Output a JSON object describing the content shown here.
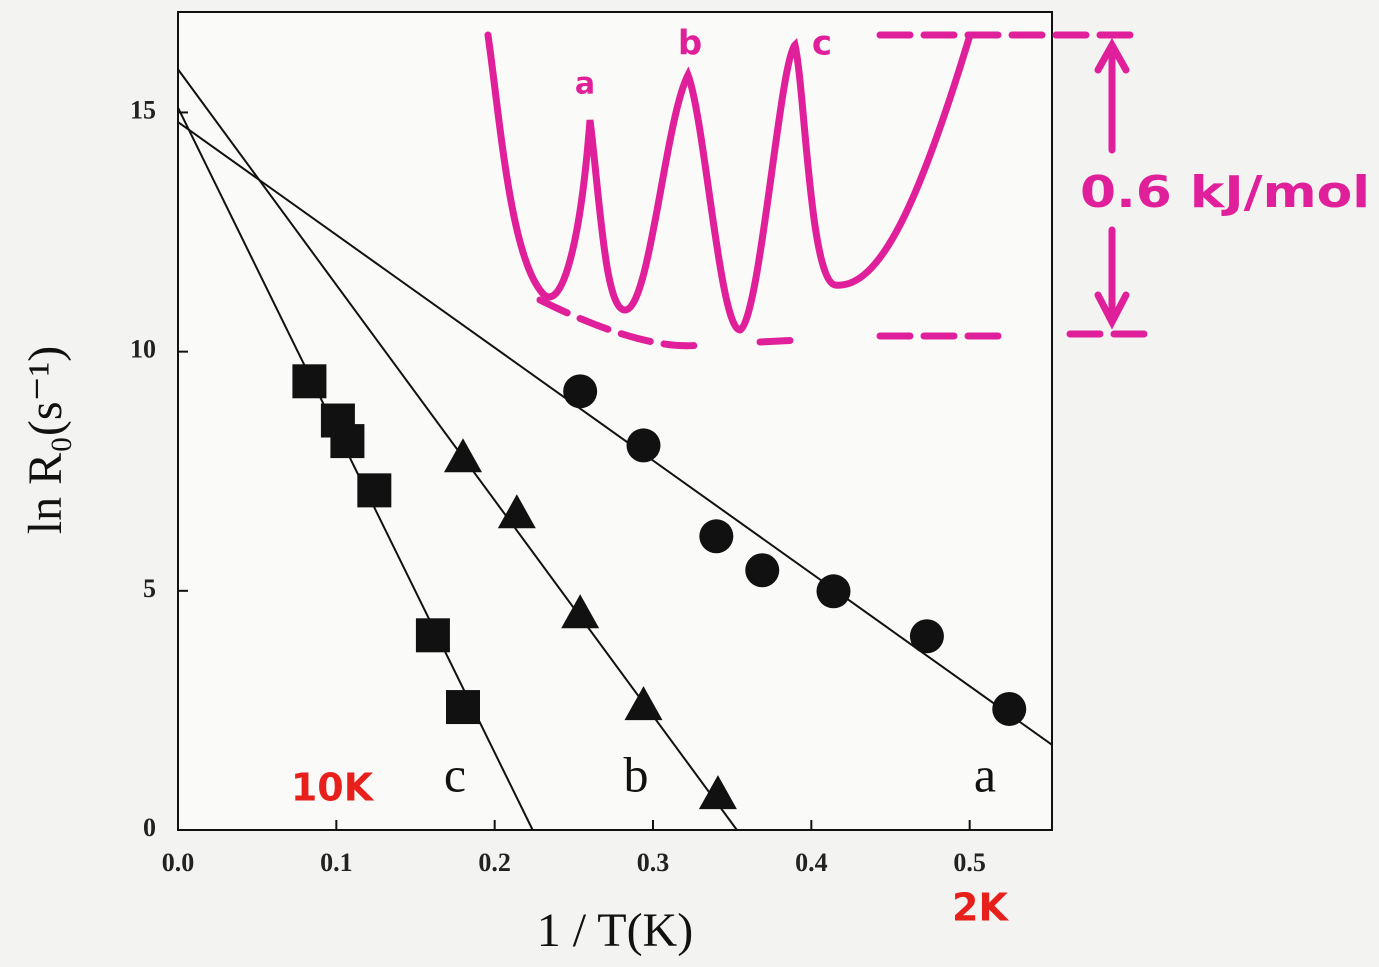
{
  "chart_data": {
    "type": "scatter",
    "x_label": "1 / T(K)",
    "y_label": "ln R₀(s⁻¹)",
    "xlim": [
      0,
      0.552
    ],
    "ylim": [
      0,
      17.1
    ],
    "xticks": [
      {
        "value": 0,
        "label": "0.0"
      },
      0.1,
      0.2,
      0.3,
      0.4,
      0.5
    ],
    "yticks": [
      0,
      5,
      10,
      15
    ],
    "series": [
      {
        "name": "a",
        "marker": "circle",
        "color": "#111111",
        "x": [
          0.254,
          0.294,
          0.34,
          0.369,
          0.414,
          0.473,
          0.525
        ],
        "values": [
          9.17,
          8.04,
          6.14,
          5.43,
          4.99,
          4.05,
          2.53
        ],
        "fit": {
          "x": [
            0,
            0.552
          ],
          "values": [
            14.8,
            1.78
          ]
        }
      },
      {
        "name": "b",
        "marker": "triangle",
        "color": "#111111",
        "x": [
          0.18,
          0.214,
          0.254,
          0.294,
          0.341
        ],
        "values": [
          7.77,
          6.6,
          4.51,
          2.59,
          0.73
        ],
        "fit": {
          "x": [
            0,
            0.353
          ],
          "values": [
            15.9,
            0
          ]
        }
      },
      {
        "name": "c",
        "marker": "square",
        "color": "#111111",
        "x": [
          0.083,
          0.101,
          0.107,
          0.124,
          0.161,
          0.18
        ],
        "values": [
          9.38,
          8.56,
          8.13,
          7.1,
          4.07,
          2.57
        ],
        "fit": {
          "x": [
            0,
            0.224
          ],
          "values": [
            15.1,
            0
          ]
        }
      }
    ],
    "annotations": {
      "low_temp": "2K",
      "high_temp": "10K"
    },
    "inset": {
      "labels": [
        "a",
        "b",
        "c"
      ],
      "barrier": "0.6 kJ/mol"
    }
  }
}
